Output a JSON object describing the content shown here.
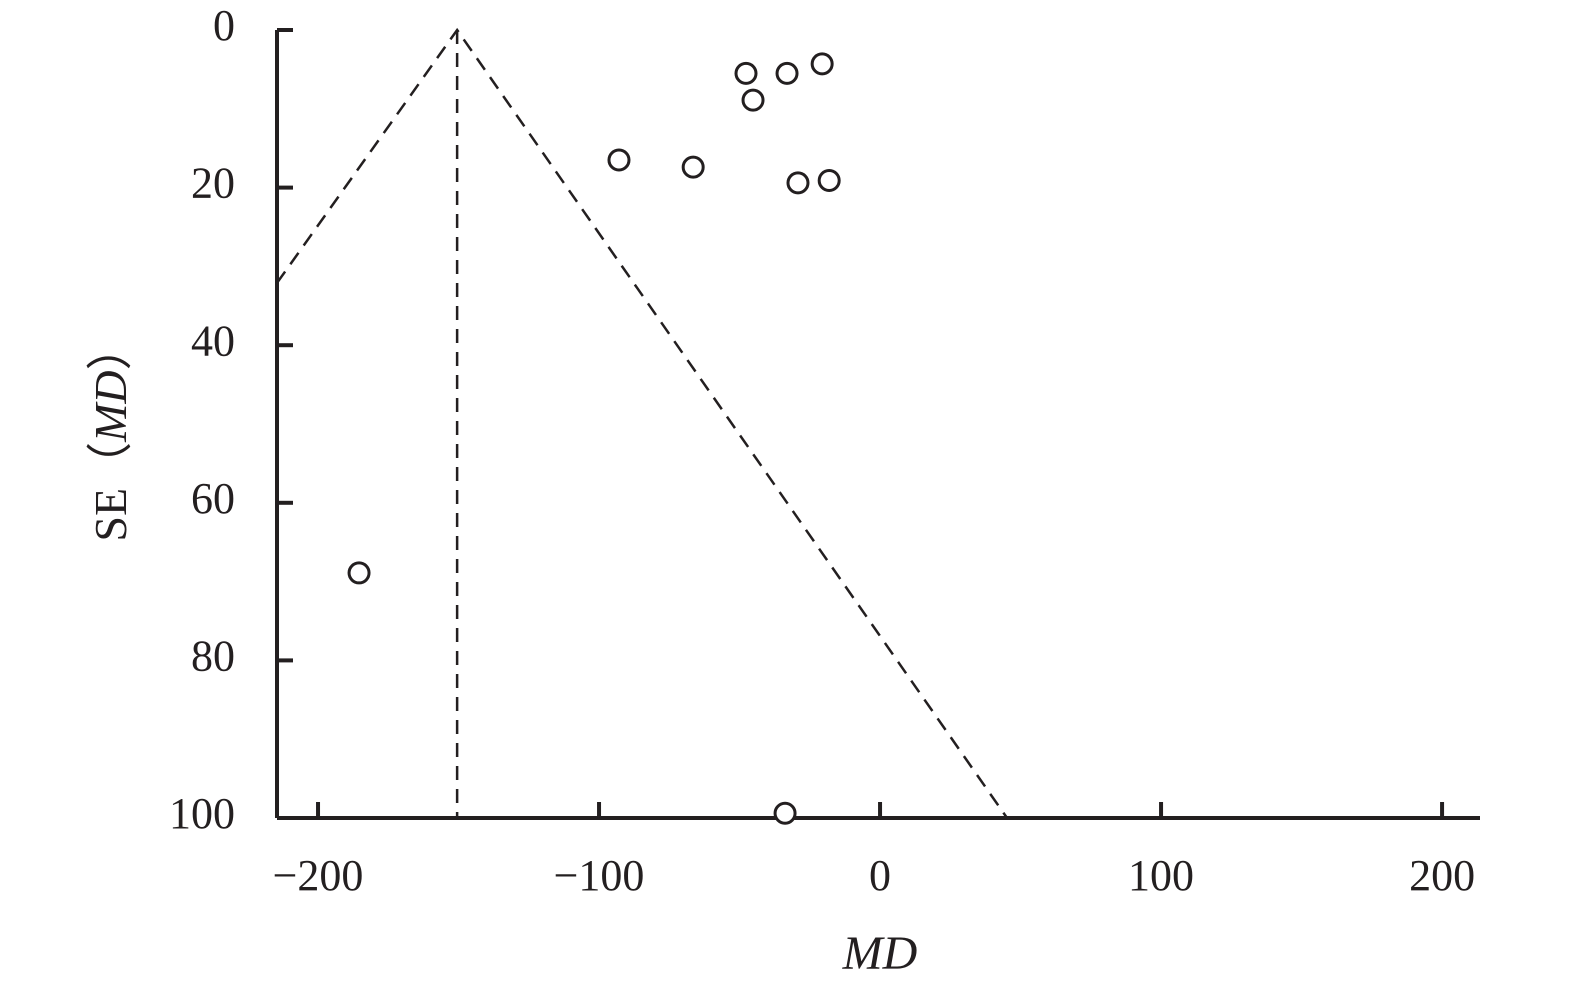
{
  "chart_data": {
    "type": "scatter",
    "xlabel": "MD",
    "ylabel_parts": [
      "SE（",
      "MD",
      "）"
    ],
    "x": [
      -47.7,
      -33.1,
      -20.6,
      -45.2,
      -92.9,
      -66.5,
      -29.2,
      -18.1,
      -185.4,
      -33.8
    ],
    "y": [
      5.5,
      5.5,
      4.3,
      8.9,
      16.5,
      17.4,
      19.4,
      19.1,
      68.9,
      99.4
    ],
    "color": "#231f20",
    "funnel": {
      "x": [
        -214.6,
        -150.5,
        45.2
      ],
      "y": [
        32.1,
        0,
        100
      ]
    },
    "pooled": {
      "x": [
        -150.5,
        -150.5
      ],
      "y": [
        0,
        100
      ]
    },
    "xlim": [
      -214.6,
      213.5
    ],
    "ylim": [
      100,
      0
    ],
    "y_inverted": true,
    "xticks": [
      {
        "value": -200,
        "label": "−200"
      },
      {
        "value": -100,
        "label": "−100"
      },
      0,
      100,
      200
    ],
    "yticks": [
      0,
      20,
      40,
      60,
      80,
      100
    ]
  }
}
